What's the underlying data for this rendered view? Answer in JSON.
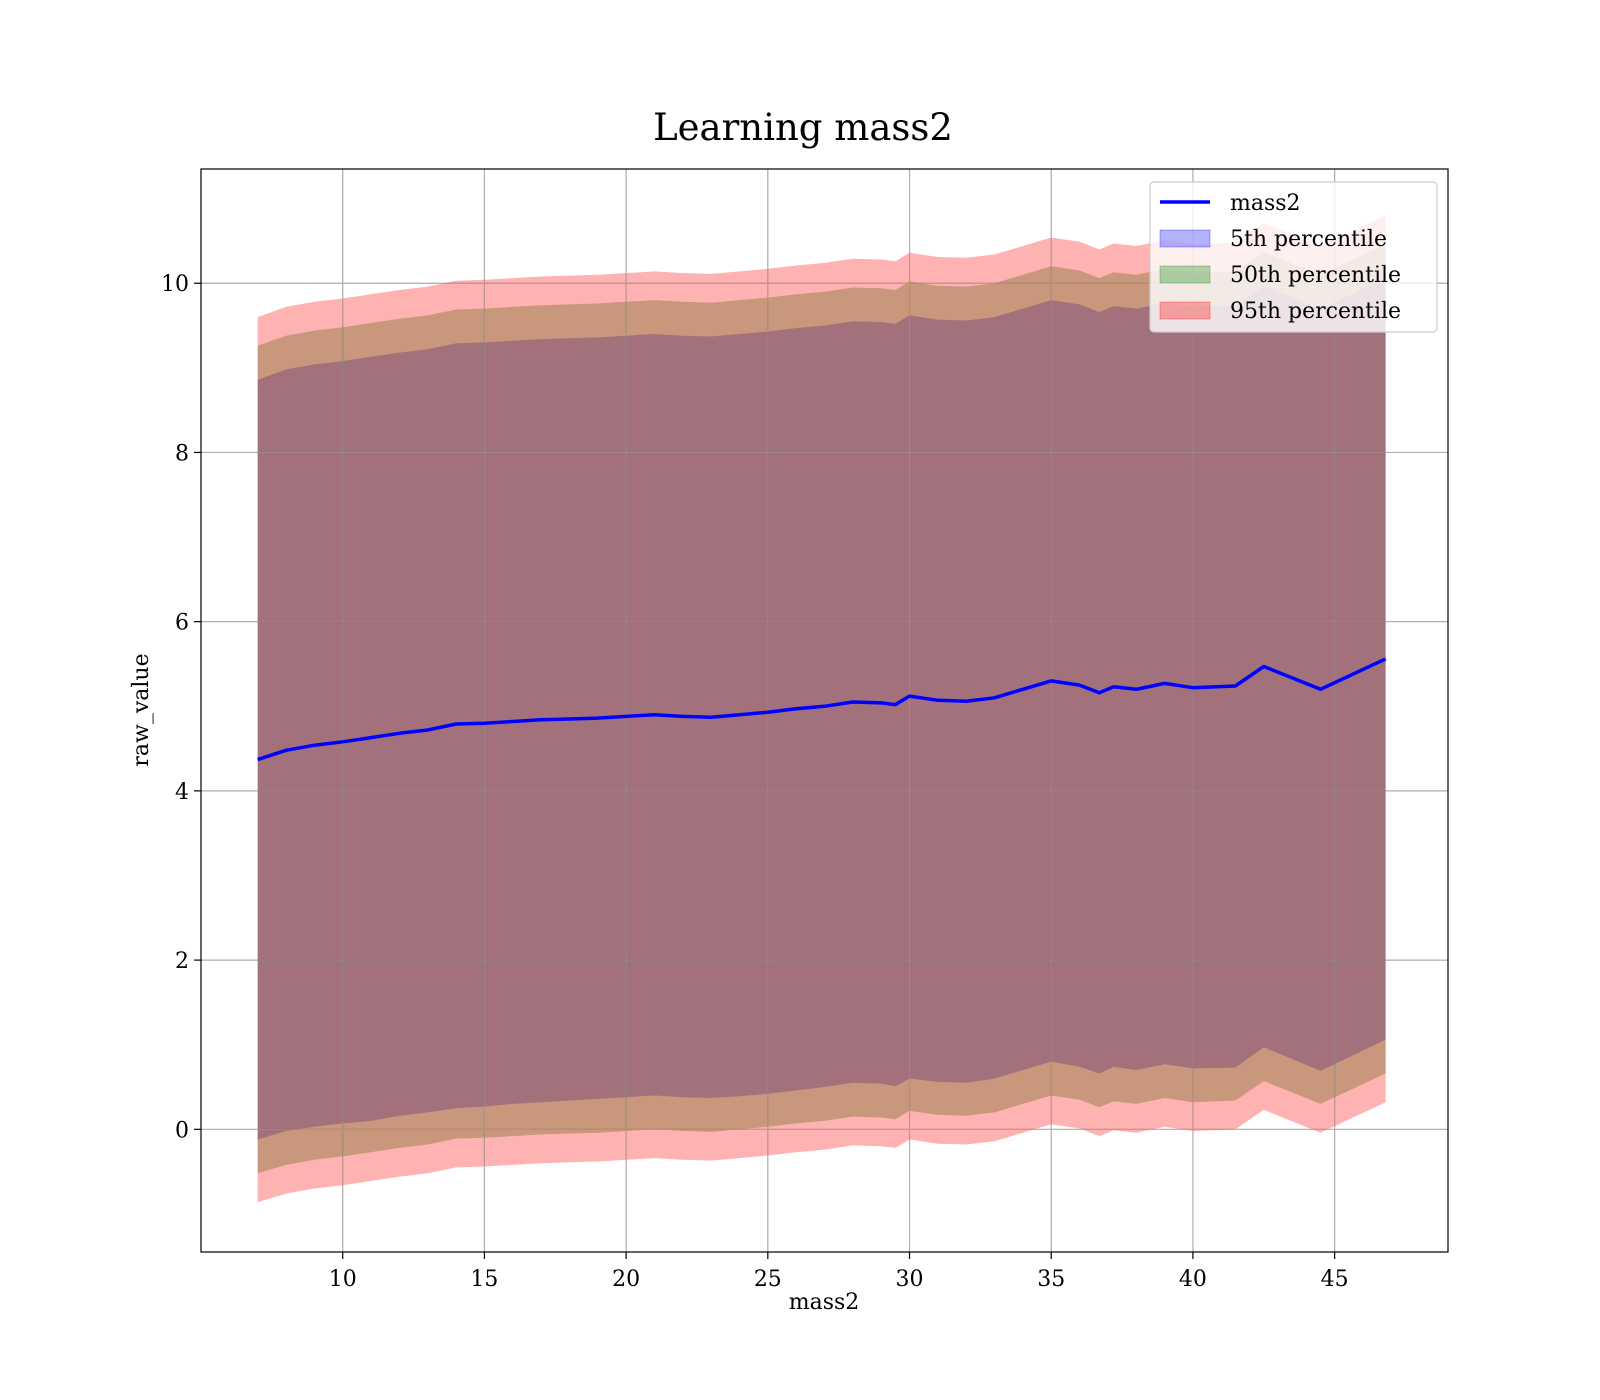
{
  "chart_data": {
    "type": "line",
    "title": "Learning mass2",
    "xlabel": "mass2",
    "ylabel": "raw_value",
    "xlim": [
      5,
      49
    ],
    "ylim": [
      -1.45,
      11.35
    ],
    "xticks": [
      10,
      15,
      20,
      25,
      30,
      35,
      40,
      45
    ],
    "yticks": [
      0,
      2,
      4,
      6,
      8,
      10
    ],
    "grid": true,
    "legend_position": "top-right",
    "colors": {
      "line": "#0000ff",
      "band_5": "#0000ff",
      "band_50": "#008000",
      "band_95": "#ff0000",
      "grid": "#b0b0b0"
    },
    "legend": [
      {
        "label": "mass2",
        "kind": "line",
        "color": "#0000ff"
      },
      {
        "label": "5th percentile",
        "kind": "patch",
        "color": "#0000ff"
      },
      {
        "label": "50th percentile",
        "kind": "patch",
        "color": "#008000"
      },
      {
        "label": "95th percentile",
        "kind": "patch",
        "color": "#ff0000"
      }
    ],
    "x": [
      7.0,
      8.0,
      9.0,
      10.0,
      11.0,
      12.0,
      13.0,
      14.0,
      15.0,
      16.0,
      17.0,
      18.0,
      19.0,
      20.0,
      21.0,
      22.0,
      23.0,
      24.0,
      25.0,
      26.0,
      27.0,
      28.0,
      29.0,
      29.5,
      30.0,
      31.0,
      32.0,
      33.0,
      34.0,
      35.0,
      36.0,
      36.7,
      37.2,
      38.0,
      39.0,
      40.0,
      41.5,
      42.5,
      44.5,
      46.8
    ],
    "series": [
      {
        "name": "mass2",
        "values": [
          4.37,
          4.48,
          4.54,
          4.58,
          4.63,
          4.68,
          4.72,
          4.79,
          4.8,
          4.82,
          4.84,
          4.85,
          4.86,
          4.88,
          4.9,
          4.88,
          4.87,
          4.9,
          4.93,
          4.97,
          5.0,
          5.05,
          5.04,
          5.02,
          5.12,
          5.07,
          5.06,
          5.1,
          5.2,
          5.3,
          5.25,
          5.16,
          5.23,
          5.2,
          5.27,
          5.22,
          5.24,
          5.47,
          5.2,
          5.56
        ]
      }
    ],
    "bands": [
      {
        "name": "5th percentile",
        "lower": [
          -0.12,
          -0.02,
          0.03,
          0.07,
          0.1,
          0.16,
          0.2,
          0.25,
          0.27,
          0.3,
          0.32,
          0.34,
          0.36,
          0.38,
          0.4,
          0.38,
          0.37,
          0.39,
          0.42,
          0.46,
          0.5,
          0.55,
          0.54,
          0.51,
          0.6,
          0.56,
          0.55,
          0.6,
          0.7,
          0.8,
          0.74,
          0.66,
          0.74,
          0.7,
          0.77,
          0.72,
          0.73,
          0.97,
          0.69,
          1.06
        ],
        "upper": [
          8.86,
          8.98,
          9.04,
          9.08,
          9.13,
          9.18,
          9.22,
          9.29,
          9.3,
          9.32,
          9.34,
          9.35,
          9.36,
          9.38,
          9.4,
          9.38,
          9.37,
          9.4,
          9.43,
          9.47,
          9.5,
          9.55,
          9.54,
          9.52,
          9.62,
          9.57,
          9.56,
          9.6,
          9.7,
          9.8,
          9.75,
          9.66,
          9.73,
          9.7,
          9.77,
          9.72,
          9.74,
          9.97,
          9.7,
          10.06
        ]
      },
      {
        "name": "50th percentile",
        "lower": [
          -0.52,
          -0.42,
          -0.36,
          -0.32,
          -0.27,
          -0.22,
          -0.18,
          -0.11,
          -0.1,
          -0.08,
          -0.06,
          -0.05,
          -0.04,
          -0.02,
          0.0,
          -0.02,
          -0.03,
          0.0,
          0.03,
          0.07,
          0.1,
          0.15,
          0.14,
          0.12,
          0.22,
          0.17,
          0.16,
          0.2,
          0.3,
          0.4,
          0.35,
          0.26,
          0.33,
          0.3,
          0.37,
          0.32,
          0.34,
          0.57,
          0.3,
          0.66
        ],
        "upper": [
          9.26,
          9.38,
          9.44,
          9.48,
          9.53,
          9.58,
          9.62,
          9.69,
          9.7,
          9.72,
          9.74,
          9.75,
          9.76,
          9.78,
          9.8,
          9.78,
          9.77,
          9.8,
          9.83,
          9.87,
          9.9,
          9.95,
          9.94,
          9.92,
          10.02,
          9.97,
          9.96,
          10.0,
          10.1,
          10.2,
          10.15,
          10.06,
          10.13,
          10.1,
          10.17,
          10.12,
          10.14,
          10.37,
          10.1,
          10.46
        ]
      },
      {
        "name": "95th percentile",
        "lower": [
          -0.86,
          -0.76,
          -0.7,
          -0.66,
          -0.61,
          -0.56,
          -0.52,
          -0.45,
          -0.44,
          -0.42,
          -0.4,
          -0.39,
          -0.38,
          -0.36,
          -0.34,
          -0.36,
          -0.37,
          -0.34,
          -0.31,
          -0.27,
          -0.24,
          -0.19,
          -0.2,
          -0.22,
          -0.12,
          -0.17,
          -0.18,
          -0.14,
          -0.04,
          0.06,
          0.01,
          -0.08,
          -0.01,
          -0.04,
          0.03,
          -0.02,
          0.0,
          0.23,
          -0.04,
          0.32
        ],
        "upper": [
          9.6,
          9.72,
          9.78,
          9.82,
          9.87,
          9.92,
          9.96,
          10.03,
          10.04,
          10.06,
          10.08,
          10.09,
          10.1,
          10.12,
          10.14,
          10.12,
          10.11,
          10.14,
          10.17,
          10.21,
          10.24,
          10.29,
          10.28,
          10.26,
          10.36,
          10.31,
          10.3,
          10.34,
          10.44,
          10.54,
          10.49,
          10.4,
          10.47,
          10.44,
          10.51,
          10.46,
          10.48,
          10.71,
          10.44,
          10.8
        ]
      }
    ]
  }
}
